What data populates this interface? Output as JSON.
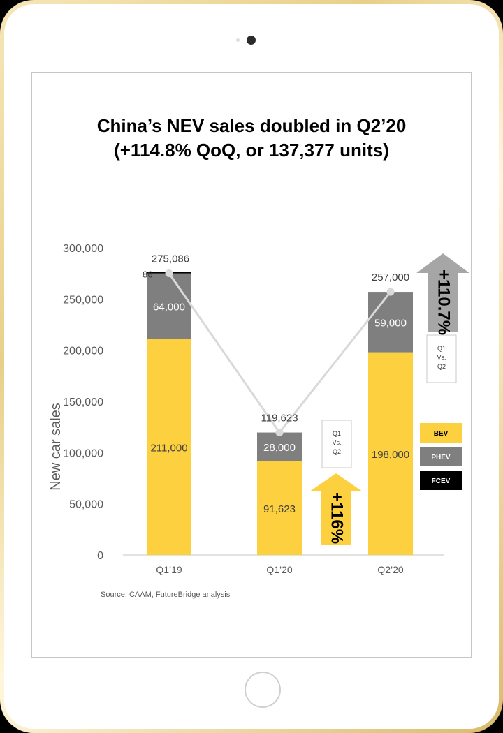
{
  "title_line1": "China’s NEV sales doubled in Q2’20",
  "title_line2": "(+114.8% QoQ, or 137,377 units)",
  "source": "Source: CAAM,  FutureBridge analysis",
  "colors": {
    "bev": "#fcd03f",
    "phev": "#7f7f7f",
    "fcev": "#000000",
    "total_line": "#d9d9d9"
  },
  "icons": [
    "camera-icon",
    "home-button-icon",
    "arrow-up-icon"
  ],
  "chart_data": {
    "type": "bar",
    "stacked": true,
    "categories": [
      "Q1’19",
      "Q1’20",
      "Q2’20"
    ],
    "series": [
      {
        "name": "BEV",
        "values": [
          211000,
          91623,
          198000
        ],
        "labels": [
          "211,000",
          "91,623",
          "198,000"
        ]
      },
      {
        "name": "PHEV",
        "values": [
          64000,
          28000,
          59000
        ],
        "labels": [
          "64,000",
          "28,000",
          "59,000"
        ]
      },
      {
        "name": "FCEV",
        "values": [
          86,
          0,
          0
        ],
        "labels": [
          "86",
          "",
          ""
        ]
      }
    ],
    "totals": {
      "values": [
        275086,
        119623,
        257000
      ],
      "labels": [
        "275,086",
        "119,623",
        "257,000"
      ]
    },
    "ylabel": "New car sales",
    "ylim": [
      0,
      300000
    ],
    "yticks": [
      0,
      50000,
      100000,
      150000,
      200000,
      250000,
      300000
    ],
    "ytick_labels": [
      "0",
      "50,000",
      "100,000",
      "150,000",
      "200,000",
      "250,000",
      "300,000"
    ],
    "legend": [
      "BEV",
      "PHEV",
      "FCEV"
    ],
    "legend_position": "right",
    "grid": false,
    "annotations": [
      {
        "text": "+116%",
        "note": "Q1\nVs.\nQ2",
        "color": "#fcd03f"
      },
      {
        "text": "+110.7%",
        "note": "Q1\nVs.\nQ2",
        "color": "#a6a6a6"
      }
    ]
  }
}
